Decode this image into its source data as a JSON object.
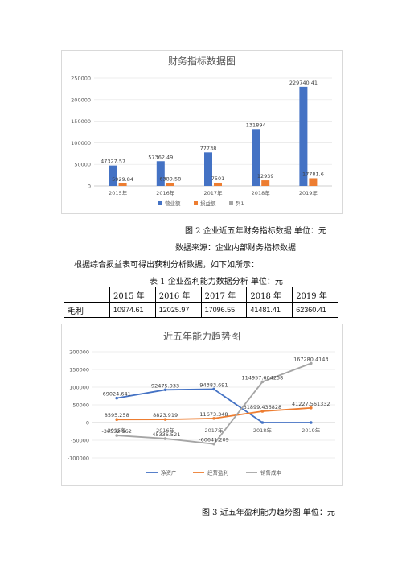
{
  "figure2": {
    "caption": "图 2  企业近五年财务指标数据  单位：元",
    "source": "数据来源：企业内部财务指标数据"
  },
  "paragraph": "根据综合损益表可得出获利分析数据，如下如所示：",
  "table1": {
    "caption": "表 1  企业盈利能力数据分析      单位：元",
    "headers": [
      "",
      "2015 年",
      "2016 年",
      "2017 年",
      "2018 年",
      "2019 年"
    ],
    "rows": [
      {
        "label": "毛利",
        "values": [
          "10974.61",
          "12025.97",
          "17096.55",
          "41481.41",
          "62360.41"
        ]
      }
    ]
  },
  "figure3": {
    "caption": "图 3  近五年盈利能力趋势图  单位：元"
  },
  "chart_data": [
    {
      "type": "bar",
      "title": "财务指标数据图",
      "categories": [
        "2015年",
        "2016年",
        "2017年",
        "2018年",
        "2019年"
      ],
      "series": [
        {
          "name": "营业额",
          "color": "#4472C4",
          "values": [
            47327.57,
            57362.49,
            77738,
            131894,
            229740.41
          ],
          "labels": [
            "47327.57",
            "57362.49",
            "77738",
            "131894",
            "229740.41"
          ]
        },
        {
          "name": "损益额",
          "color": "#ED7D31",
          "values": [
            5929.84,
            6389.58,
            7501,
            12939,
            17781.6
          ],
          "labels": [
            "5929.84",
            "6389.58",
            "7501",
            "12939",
            "17781.6"
          ]
        },
        {
          "name": "列1",
          "color": "#A5A5A5",
          "values": [
            null,
            null,
            null,
            null,
            null
          ],
          "labels": []
        }
      ],
      "ylim": [
        0,
        250000
      ],
      "yticks": [
        "0",
        "50000",
        "100000",
        "150000",
        "200000",
        "250000"
      ],
      "grid": true,
      "legend": "bottom"
    },
    {
      "type": "line",
      "title": "近五年能力趋势图",
      "categories": [
        "2015年",
        "2016年",
        "2017年",
        "2018年",
        "2019年"
      ],
      "series": [
        {
          "name": "净资产",
          "color": "#4472C4",
          "values": [
            69024.641,
            92475.933,
            94383.691,
            0,
            0
          ],
          "labels": [
            "69024.641",
            "92475.933",
            "94383.691",
            "",
            ""
          ]
        },
        {
          "name": "经营盈利",
          "color": "#ED7D31",
          "values": [
            8595.258,
            8823.919,
            11673.348,
            31899.436828,
            41227.561332
          ],
          "labels": [
            "8595.258",
            "8823.919",
            "11673.348",
            "31899.436828",
            "41227.561332"
          ]
        },
        {
          "name": "销售成本",
          "color": "#A5A5A5",
          "values": [
            -36532.562,
            -45336.521,
            -60641.209,
            114957.604258,
            167280.4143
          ],
          "labels": [
            "-36532.562",
            "-45336.521",
            "-60641.209",
            "114957.604258",
            "167280.4143"
          ]
        }
      ],
      "ylim": [
        -100000,
        200000
      ],
      "yticks": [
        "-100000",
        "-50000",
        "0",
        "50000",
        "100000",
        "150000",
        "200000"
      ],
      "grid": true,
      "legend": "bottom"
    }
  ]
}
